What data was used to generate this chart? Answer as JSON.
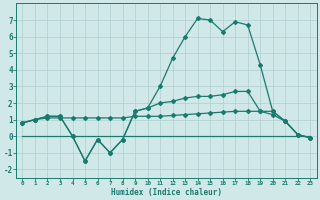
{
  "x": [
    0,
    1,
    2,
    3,
    4,
    5,
    6,
    7,
    8,
    9,
    10,
    11,
    12,
    13,
    14,
    15,
    16,
    17,
    18,
    19,
    20,
    21,
    22,
    23
  ],
  "line1": [
    0.8,
    1.0,
    1.2,
    1.2,
    0.0,
    -1.5,
    -0.2,
    -1.0,
    -0.2,
    1.5,
    1.7,
    3.0,
    4.7,
    6.0,
    7.1,
    7.0,
    6.3,
    6.9,
    6.7,
    4.3,
    1.5,
    0.9,
    0.1,
    -0.1
  ],
  "line2": [
    0.8,
    1.0,
    1.2,
    1.2,
    0.0,
    -1.5,
    -0.2,
    -1.0,
    -0.2,
    1.5,
    1.7,
    2.0,
    2.1,
    2.3,
    2.4,
    2.4,
    2.5,
    2.7,
    2.7,
    1.5,
    1.3,
    0.9,
    0.1,
    -0.1
  ],
  "line3": [
    0.8,
    1.0,
    1.1,
    1.1,
    1.1,
    1.1,
    1.1,
    1.1,
    1.1,
    1.2,
    1.2,
    1.2,
    1.25,
    1.3,
    1.35,
    1.4,
    1.45,
    1.5,
    1.5,
    1.5,
    1.5,
    0.9,
    0.1,
    -0.1
  ],
  "line4": [
    0.0,
    0.0,
    0.0,
    0.0,
    0.0,
    0.0,
    0.0,
    0.0,
    0.0,
    0.0,
    0.0,
    0.0,
    0.0,
    0.0,
    0.0,
    0.0,
    0.0,
    0.0,
    0.0,
    0.0,
    0.0,
    0.0,
    0.0,
    0.0
  ],
  "color": "#1a7a6e",
  "bg_color": "#d0e8e8",
  "grid_color": "#b0cece",
  "xlabel": "Humidex (Indice chaleur)",
  "xlim": [
    -0.5,
    23.5
  ],
  "ylim": [
    -2.5,
    8.0
  ],
  "yticks": [
    -2,
    -1,
    0,
    1,
    2,
    3,
    4,
    5,
    6,
    7
  ],
  "xticks": [
    0,
    1,
    2,
    3,
    4,
    5,
    6,
    7,
    8,
    9,
    10,
    11,
    12,
    13,
    14,
    15,
    16,
    17,
    18,
    19,
    20,
    21,
    22,
    23
  ],
  "xtick_labels": [
    "0",
    "1",
    "2",
    "3",
    "4",
    "5",
    "6",
    "7",
    "8",
    "9",
    "10",
    "11",
    "12",
    "13",
    "14",
    "15",
    "16",
    "17",
    "18",
    "19",
    "20",
    "21",
    "22",
    "23"
  ]
}
